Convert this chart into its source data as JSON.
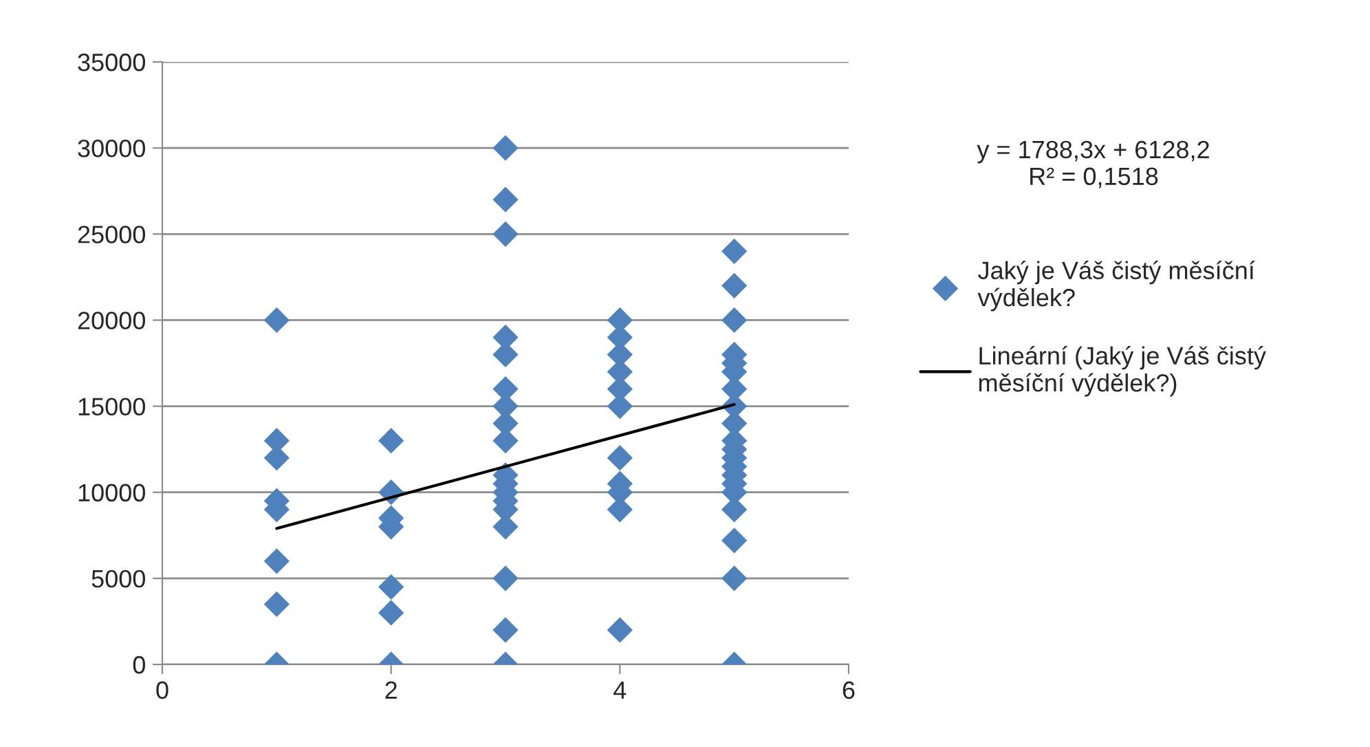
{
  "chart_data": {
    "type": "scatter",
    "xlim": [
      0,
      6
    ],
    "xticks": [
      0,
      2,
      4,
      6
    ],
    "ylim": [
      0,
      35000
    ],
    "yticks": [
      0,
      5000,
      10000,
      15000,
      20000,
      25000,
      30000,
      35000
    ],
    "grid": "y",
    "legend": "right",
    "marker": "diamond",
    "annotations": [
      "y = 1788,3x + 6128,2\nR² = 0,1518"
    ],
    "series": [
      {
        "name": "Jaký je Váš čistý měsíční výdělek?",
        "color": "#4f81bd",
        "x": [
          1,
          1,
          1,
          1,
          1,
          1,
          1,
          1,
          2,
          2,
          2,
          2,
          2,
          2,
          2,
          3,
          3,
          3,
          3,
          3,
          3,
          3,
          3,
          3,
          3,
          3,
          3,
          3,
          3,
          3,
          3,
          3,
          3,
          4,
          4,
          4,
          4,
          4,
          4,
          4,
          4,
          4,
          4,
          4,
          5,
          5,
          5,
          5,
          5,
          5,
          5,
          5,
          5,
          5,
          5,
          5,
          5,
          5,
          5,
          5,
          5,
          5,
          5,
          5
        ],
        "values": [
          20000,
          13000,
          12000,
          9500,
          9000,
          6000,
          3500,
          0,
          13000,
          10000,
          8500,
          8000,
          4500,
          3000,
          0,
          30000,
          27000,
          25000,
          19000,
          18000,
          16000,
          15000,
          14000,
          13000,
          11000,
          10500,
          10000,
          9500,
          9000,
          8000,
          5000,
          2000,
          0,
          20000,
          19000,
          18000,
          17000,
          16000,
          15000,
          12000,
          10500,
          10000,
          9000,
          2000,
          24000,
          22000,
          20000,
          18000,
          17500,
          17000,
          16000,
          15000,
          14000,
          13000,
          12500,
          12000,
          11500,
          11000,
          10500,
          10000,
          9000,
          7200,
          5000,
          0
        ]
      },
      {
        "name": "Lineární (Jaký je Váš čistý měsíční výdělek?)",
        "color": "#000000",
        "type": "line",
        "marker": "none",
        "line_style": "solid",
        "x": [
          1,
          5
        ],
        "values": [
          7900,
          15100
        ]
      }
    ]
  }
}
